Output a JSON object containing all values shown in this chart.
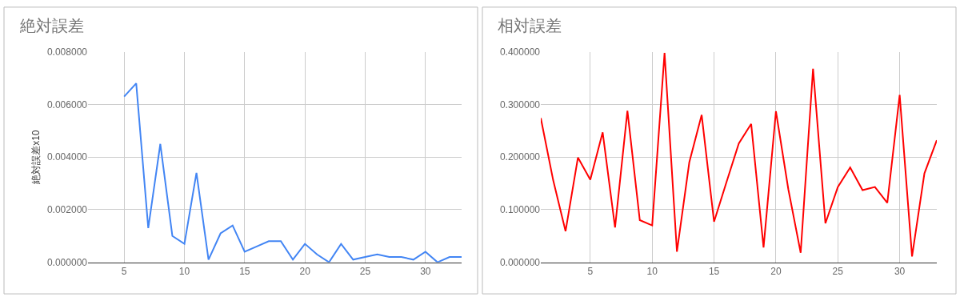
{
  "chart_data": [
    {
      "type": "line",
      "title": "絶対誤差",
      "ylabel": "絶対誤差x10",
      "x": [
        5,
        6,
        7,
        8,
        9,
        10,
        11,
        12,
        13,
        14,
        15,
        16,
        17,
        18,
        19,
        20,
        21,
        22,
        23,
        24,
        25,
        26,
        27,
        28,
        29,
        30,
        31,
        32,
        33
      ],
      "series": [
        {
          "color": "#4285f4",
          "values": [
            0.0063,
            0.0068,
            0.0013,
            0.0045,
            0.001,
            0.0007,
            0.0034,
            0.0001,
            0.0011,
            0.0014,
            0.0004,
            0.0006,
            0.0008,
            0.0008,
            0.0001,
            0.0007,
            0.0003,
            0.0,
            0.0007,
            0.0001,
            0.0002,
            0.0003,
            0.0002,
            0.0002,
            0.0001,
            0.0004,
            0.0,
            0.0002,
            0.0002
          ]
        }
      ],
      "xlim": [
        2,
        33
      ],
      "xticks": [
        5,
        10,
        15,
        20,
        25,
        30
      ],
      "ylim": [
        0,
        0.008
      ],
      "yticks": [
        {
          "value": 0,
          "label": "0.000000"
        },
        {
          "value": 0.002,
          "label": "0.002000"
        },
        {
          "value": 0.004,
          "label": "0.004000"
        },
        {
          "value": 0.006,
          "label": "0.006000"
        },
        {
          "value": 0.008,
          "label": "0.008000"
        }
      ],
      "grid": true,
      "line_style": "solid",
      "marker": "none"
    },
    {
      "type": "line",
      "title": "相対誤差",
      "x": [
        1,
        2,
        3,
        4,
        5,
        6,
        7,
        8,
        9,
        10,
        11,
        12,
        13,
        14,
        15,
        16,
        17,
        18,
        19,
        20,
        21,
        22,
        23,
        24,
        25,
        26,
        27,
        28,
        29,
        30,
        31,
        32,
        33
      ],
      "series": [
        {
          "color": "#ff0000",
          "values": [
            0.274,
            0.156,
            0.059,
            0.199,
            0.157,
            0.247,
            0.066,
            0.288,
            0.08,
            0.07,
            0.398,
            0.02,
            0.19,
            0.28,
            0.077,
            0.152,
            0.226,
            0.263,
            0.028,
            0.287,
            0.139,
            0.018,
            0.368,
            0.074,
            0.143,
            0.18,
            0.137,
            0.143,
            0.113,
            0.318,
            0.011,
            0.169,
            0.232
          ]
        }
      ],
      "xlim": [
        1,
        33
      ],
      "xticks": [
        5,
        10,
        15,
        20,
        25,
        30
      ],
      "ylim": [
        0,
        0.4
      ],
      "yticks": [
        {
          "value": 0,
          "label": "0.000000"
        },
        {
          "value": 0.1,
          "label": "0.100000"
        },
        {
          "value": 0.2,
          "label": "0.200000"
        },
        {
          "value": 0.3,
          "label": "0.300000"
        },
        {
          "value": 0.4,
          "label": "0.400000"
        }
      ],
      "grid": true,
      "line_style": "solid",
      "marker": "none"
    }
  ]
}
